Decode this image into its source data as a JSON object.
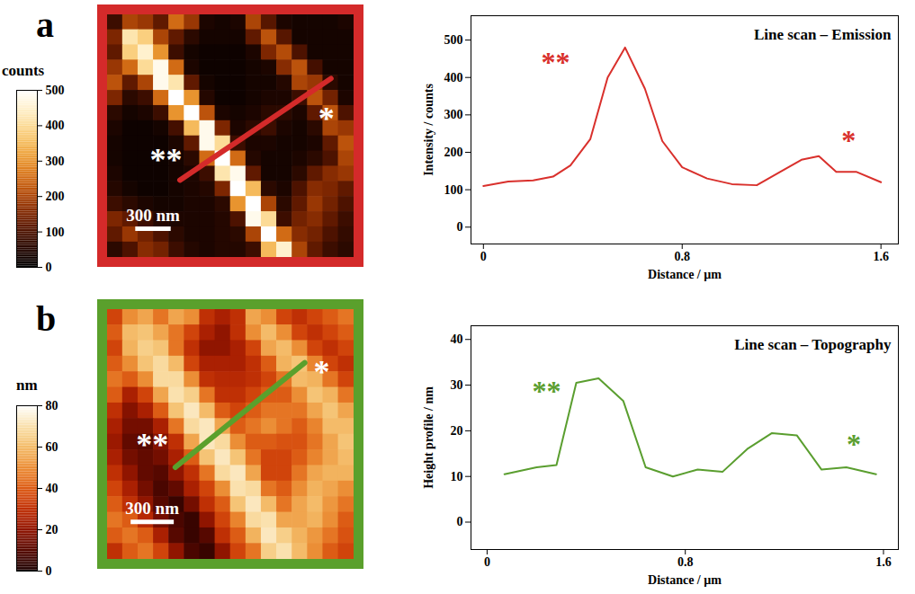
{
  "chart_data": [
    {
      "type": "heatmap",
      "panel_label": "a",
      "color": "#d42a2a",
      "tick_labels": false,
      "xlim": [
        0,
        16
      ],
      "ylim": [
        0,
        16
      ],
      "colorbar": {
        "label": "counts",
        "range": [
          0,
          500
        ],
        "ticks": [
          0,
          100,
          200,
          300,
          400,
          500
        ]
      },
      "cells": [
        [
          80,
          200,
          180,
          120,
          250,
          180,
          40,
          30,
          40,
          200,
          110,
          40,
          30,
          30,
          30,
          40
        ],
        [
          150,
          420,
          380,
          200,
          120,
          60,
          30,
          30,
          30,
          120,
          220,
          110,
          30,
          30,
          30,
          30
        ],
        [
          120,
          380,
          450,
          300,
          80,
          30,
          20,
          20,
          20,
          40,
          150,
          210,
          100,
          30,
          30,
          30
        ],
        [
          180,
          250,
          400,
          480,
          250,
          40,
          20,
          20,
          20,
          30,
          40,
          160,
          220,
          90,
          30,
          30
        ],
        [
          220,
          120,
          200,
          480,
          420,
          120,
          30,
          20,
          20,
          30,
          30,
          50,
          200,
          180,
          60,
          30
        ],
        [
          150,
          60,
          80,
          250,
          500,
          300,
          50,
          20,
          20,
          30,
          40,
          40,
          80,
          220,
          140,
          40
        ],
        [
          60,
          30,
          40,
          80,
          300,
          500,
          220,
          40,
          30,
          40,
          60,
          60,
          40,
          120,
          220,
          100
        ],
        [
          40,
          20,
          20,
          30,
          90,
          350,
          480,
          150,
          40,
          60,
          80,
          40,
          30,
          60,
          200,
          180
        ],
        [
          30,
          20,
          20,
          20,
          40,
          120,
          480,
          400,
          80,
          40,
          40,
          30,
          30,
          40,
          120,
          220
        ],
        [
          30,
          20,
          20,
          20,
          30,
          60,
          250,
          500,
          250,
          50,
          30,
          30,
          40,
          60,
          100,
          200
        ],
        [
          40,
          20,
          20,
          20,
          30,
          40,
          80,
          420,
          480,
          120,
          30,
          30,
          60,
          120,
          160,
          180
        ],
        [
          50,
          30,
          20,
          20,
          30,
          40,
          50,
          150,
          500,
          350,
          60,
          40,
          100,
          160,
          150,
          120
        ],
        [
          80,
          60,
          40,
          30,
          30,
          40,
          40,
          60,
          300,
          500,
          200,
          60,
          120,
          180,
          140,
          100
        ],
        [
          150,
          120,
          80,
          50,
          40,
          40,
          40,
          50,
          100,
          480,
          400,
          80,
          140,
          160,
          120,
          80
        ],
        [
          120,
          180,
          140,
          100,
          60,
          40,
          40,
          50,
          60,
          200,
          500,
          250,
          160,
          140,
          100,
          70
        ],
        [
          60,
          100,
          160,
          140,
          80,
          50,
          40,
          50,
          50,
          80,
          350,
          450,
          200,
          120,
          80,
          60
        ]
      ],
      "scan_line": {
        "x": [
          4.7,
          14.5
        ],
        "y": [
          10.9,
          4.2
        ]
      },
      "scale_bar": {
        "label": "300 nm",
        "x": 1.8,
        "y": 14.1,
        "length": 2.3
      },
      "annotations": [
        {
          "text": "**",
          "x": 3.8,
          "y": 9.6
        },
        {
          "text": "*",
          "x": 14.2,
          "y": 6.9
        }
      ]
    },
    {
      "type": "line",
      "title": "Line scan – Emission",
      "color": "#d9302c",
      "xlabel": "Distance / µm",
      "ylabel": "Intensity / counts",
      "x": [
        0,
        0.1,
        0.2,
        0.28,
        0.35,
        0.43,
        0.5,
        0.57,
        0.65,
        0.72,
        0.8,
        0.9,
        1.0,
        1.1,
        1.2,
        1.28,
        1.35,
        1.42,
        1.5,
        1.6
      ],
      "values": [
        110,
        122,
        125,
        135,
        165,
        235,
        400,
        480,
        370,
        230,
        160,
        130,
        115,
        112,
        150,
        180,
        190,
        148,
        148,
        120
      ],
      "xlim": [
        -0.05,
        1.67
      ],
      "xticks": [
        0,
        0.8,
        1.6
      ],
      "ylim": [
        -45,
        565
      ],
      "yticks": [
        0,
        100,
        200,
        300,
        400,
        500
      ],
      "annotations": [
        {
          "text": "**",
          "x": 0.29,
          "y": 440
        },
        {
          "text": "*",
          "x": 1.47,
          "y": 230
        }
      ]
    },
    {
      "type": "heatmap",
      "panel_label": "b",
      "color": "#5aa02c",
      "tick_labels": false,
      "xlim": [
        0,
        16
      ],
      "ylim": [
        0,
        16
      ],
      "colorbar": {
        "label": "nm",
        "range": [
          0,
          80
        ],
        "ticks": [
          0,
          20,
          40,
          60,
          80
        ]
      },
      "cells": [
        [
          35,
          50,
          55,
          45,
          55,
          50,
          30,
          25,
          30,
          55,
          50,
          35,
          30,
          35,
          40,
          45
        ],
        [
          40,
          60,
          62,
          55,
          45,
          35,
          25,
          20,
          30,
          50,
          60,
          50,
          35,
          30,
          35,
          40
        ],
        [
          35,
          58,
          65,
          62,
          45,
          30,
          20,
          20,
          25,
          35,
          55,
          60,
          50,
          35,
          30,
          35
        ],
        [
          40,
          50,
          62,
          68,
          60,
          35,
          25,
          25,
          25,
          30,
          40,
          58,
          62,
          48,
          35,
          30
        ],
        [
          45,
          40,
          50,
          68,
          68,
          50,
          30,
          28,
          28,
          30,
          35,
          45,
          60,
          58,
          45,
          35
        ],
        [
          40,
          25,
          35,
          55,
          70,
          65,
          45,
          30,
          30,
          35,
          40,
          40,
          50,
          62,
          58,
          45
        ],
        [
          30,
          18,
          25,
          40,
          62,
          72,
          60,
          40,
          35,
          40,
          45,
          45,
          45,
          55,
          62,
          55
        ],
        [
          25,
          15,
          15,
          25,
          45,
          68,
          72,
          55,
          40,
          45,
          50,
          45,
          40,
          48,
          60,
          60
        ],
        [
          22,
          12,
          10,
          18,
          30,
          55,
          72,
          68,
          50,
          40,
          40,
          38,
          38,
          45,
          55,
          62
        ],
        [
          25,
          15,
          12,
          15,
          25,
          40,
          62,
          72,
          62,
          45,
          35,
          35,
          40,
          48,
          55,
          60
        ],
        [
          30,
          20,
          12,
          10,
          20,
          30,
          45,
          68,
          72,
          55,
          35,
          35,
          45,
          55,
          58,
          58
        ],
        [
          35,
          25,
          15,
          8,
          12,
          25,
          35,
          50,
          70,
          68,
          45,
          40,
          50,
          58,
          55,
          50
        ],
        [
          40,
          30,
          20,
          10,
          5,
          15,
          30,
          40,
          62,
          72,
          60,
          45,
          55,
          60,
          52,
          45
        ],
        [
          45,
          40,
          28,
          15,
          8,
          5,
          20,
          35,
          48,
          68,
          70,
          55,
          55,
          58,
          50,
          40
        ],
        [
          40,
          45,
          40,
          25,
          10,
          5,
          10,
          30,
          40,
          58,
          72,
          65,
          58,
          52,
          45,
          38
        ],
        [
          30,
          40,
          45,
          35,
          20,
          8,
          5,
          20,
          35,
          45,
          65,
          70,
          60,
          50,
          40,
          35
        ]
      ],
      "scan_line": {
        "x": [
          4.4,
          12.8
        ],
        "y": [
          10.1,
          3.4
        ]
      },
      "scale_bar": {
        "label": "300 nm",
        "x": 1.5,
        "y": 13.6,
        "length": 2.8
      },
      "annotations": [
        {
          "text": "**",
          "x": 2.9,
          "y": 8.7
        },
        {
          "text": "*",
          "x": 13.9,
          "y": 4.0
        }
      ]
    },
    {
      "type": "line",
      "title": "Line scan – Topography",
      "color": "#5a9e2f",
      "xlabel": "Distance / µm",
      "ylabel": "Height profile / nm",
      "x": [
        0.07,
        0.2,
        0.28,
        0.36,
        0.45,
        0.55,
        0.64,
        0.75,
        0.85,
        0.95,
        1.05,
        1.15,
        1.25,
        1.35,
        1.45,
        1.57
      ],
      "values": [
        10.5,
        12,
        12.5,
        30.5,
        31.5,
        26.5,
        12,
        10,
        11.5,
        11,
        16,
        19.5,
        19,
        11.5,
        12,
        10.5
      ],
      "xlim": [
        -0.065,
        1.66
      ],
      "xticks": [
        0,
        0.8,
        1.6
      ],
      "ylim": [
        -6,
        43
      ],
      "yticks": [
        0,
        10,
        20,
        30,
        40
      ],
      "annotations": [
        {
          "text": "**",
          "x": 0.24,
          "y": 28.5
        },
        {
          "text": "*",
          "x": 1.48,
          "y": 17
        }
      ]
    }
  ]
}
